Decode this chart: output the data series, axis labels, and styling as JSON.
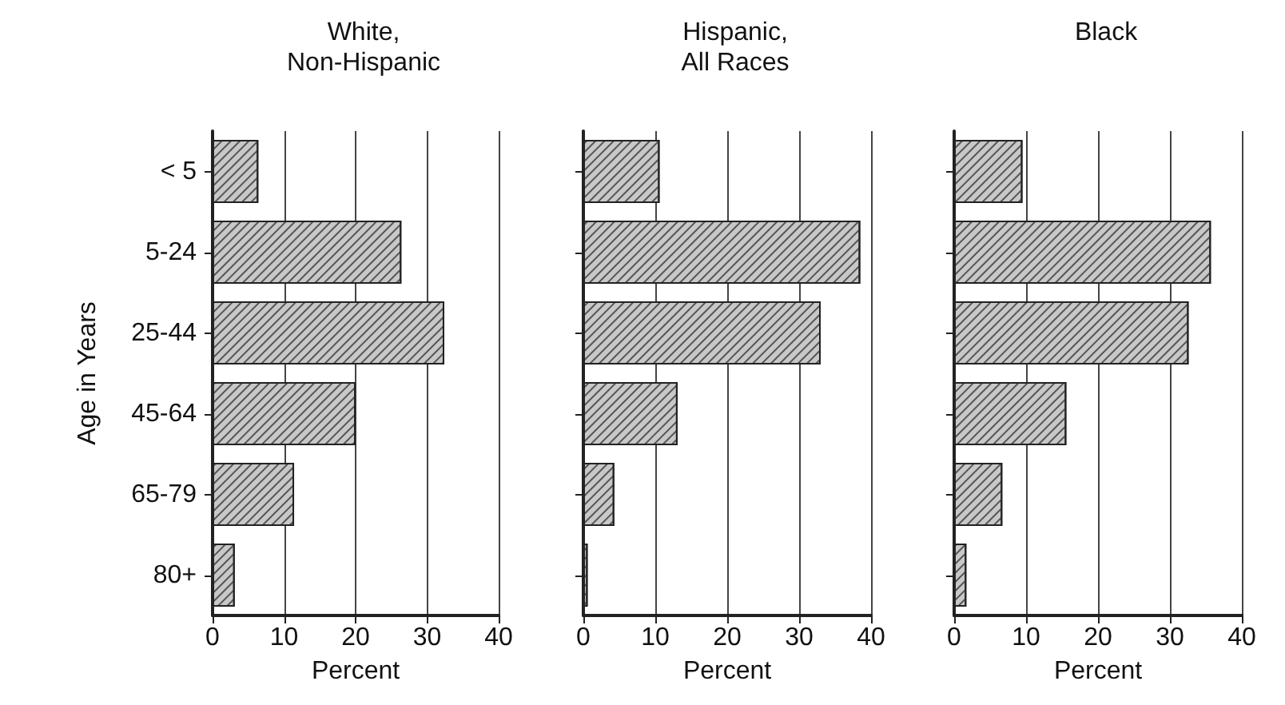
{
  "chart_data": [
    {
      "type": "bar",
      "orientation": "horizontal",
      "title": "White,\nNon-Hispanic",
      "xlabel": "Percent",
      "ylabel": "Age in Years",
      "categories": [
        "< 5",
        "5-24",
        "25-44",
        "45-64",
        "65-79",
        "80+"
      ],
      "values": [
        6.4,
        26.4,
        32.4,
        20,
        11.4,
        3.1
      ],
      "color": "#c8c8c8",
      "xlim": [
        0,
        40
      ],
      "xticks": [
        0,
        10,
        20,
        30,
        40
      ],
      "grid": "x"
    },
    {
      "type": "bar",
      "orientation": "horizontal",
      "title": "Hispanic,\nAll Races",
      "xlabel": "Percent",
      "categories": [
        null,
        null,
        null,
        null,
        null,
        null
      ],
      "values": [
        10.6,
        38.5,
        33,
        13.1,
        4.3,
        0.6
      ],
      "color": "#c8c8c8",
      "xlim": [
        0,
        40
      ],
      "xticks": [
        0,
        10,
        20,
        30,
        40
      ],
      "grid": "x"
    },
    {
      "type": "bar",
      "orientation": "horizontal",
      "title": "Black",
      "xlabel": "Percent",
      "categories": [
        null,
        null,
        null,
        null,
        null,
        null
      ],
      "values": [
        9.5,
        35.7,
        32.6,
        15.6,
        6.7,
        1.7
      ],
      "color": "#c8c8c8",
      "xlim": [
        0,
        40
      ],
      "xticks": [
        0,
        10,
        20,
        30,
        40
      ],
      "grid": "x"
    }
  ]
}
